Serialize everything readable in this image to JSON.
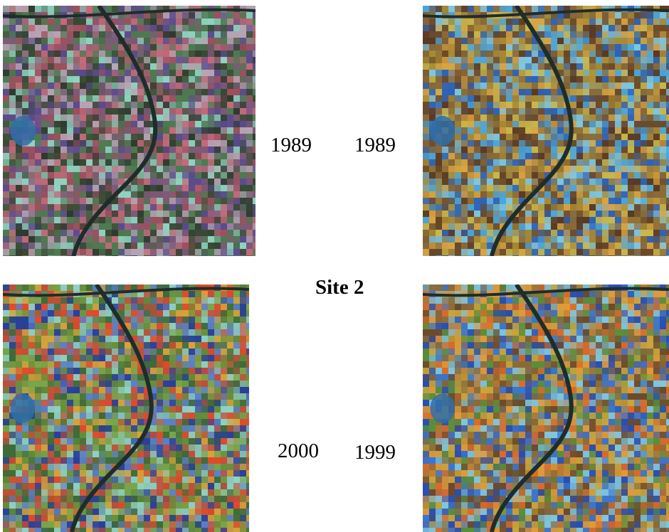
{
  "title": "Site 2",
  "panels": [
    {
      "id": "tl",
      "year": "1989",
      "colors": [
        "#4e7a52",
        "#7e5a78",
        "#c26a7a",
        "#3b4a34",
        "#8fd3c0",
        "#5c4a8e",
        "#b7a3b3",
        "#2f3a2e",
        "#9e4f5f"
      ]
    },
    {
      "id": "tr",
      "year": "1989",
      "colors": [
        "#6b4b2e",
        "#4ea6d8",
        "#c9b74b",
        "#2d63b8",
        "#8a6b3a",
        "#d9a441",
        "#5a3a22",
        "#7fc6e0",
        "#a88b34"
      ]
    },
    {
      "id": "bl",
      "year": "2000",
      "colors": [
        "#3e6b3a",
        "#e04a2a",
        "#5b7fc9",
        "#7aa54a",
        "#d6a33b",
        "#2a3f9a",
        "#6a8f3a",
        "#c24e3a",
        "#8fd1c6"
      ]
    },
    {
      "id": "br",
      "year": "1999",
      "colors": [
        "#6b4b2e",
        "#3a76cf",
        "#c9a53b",
        "#5a8f3a",
        "#e09a3a",
        "#2a4fb0",
        "#8a6b3a",
        "#d96b2a",
        "#7fc6e0"
      ]
    }
  ]
}
